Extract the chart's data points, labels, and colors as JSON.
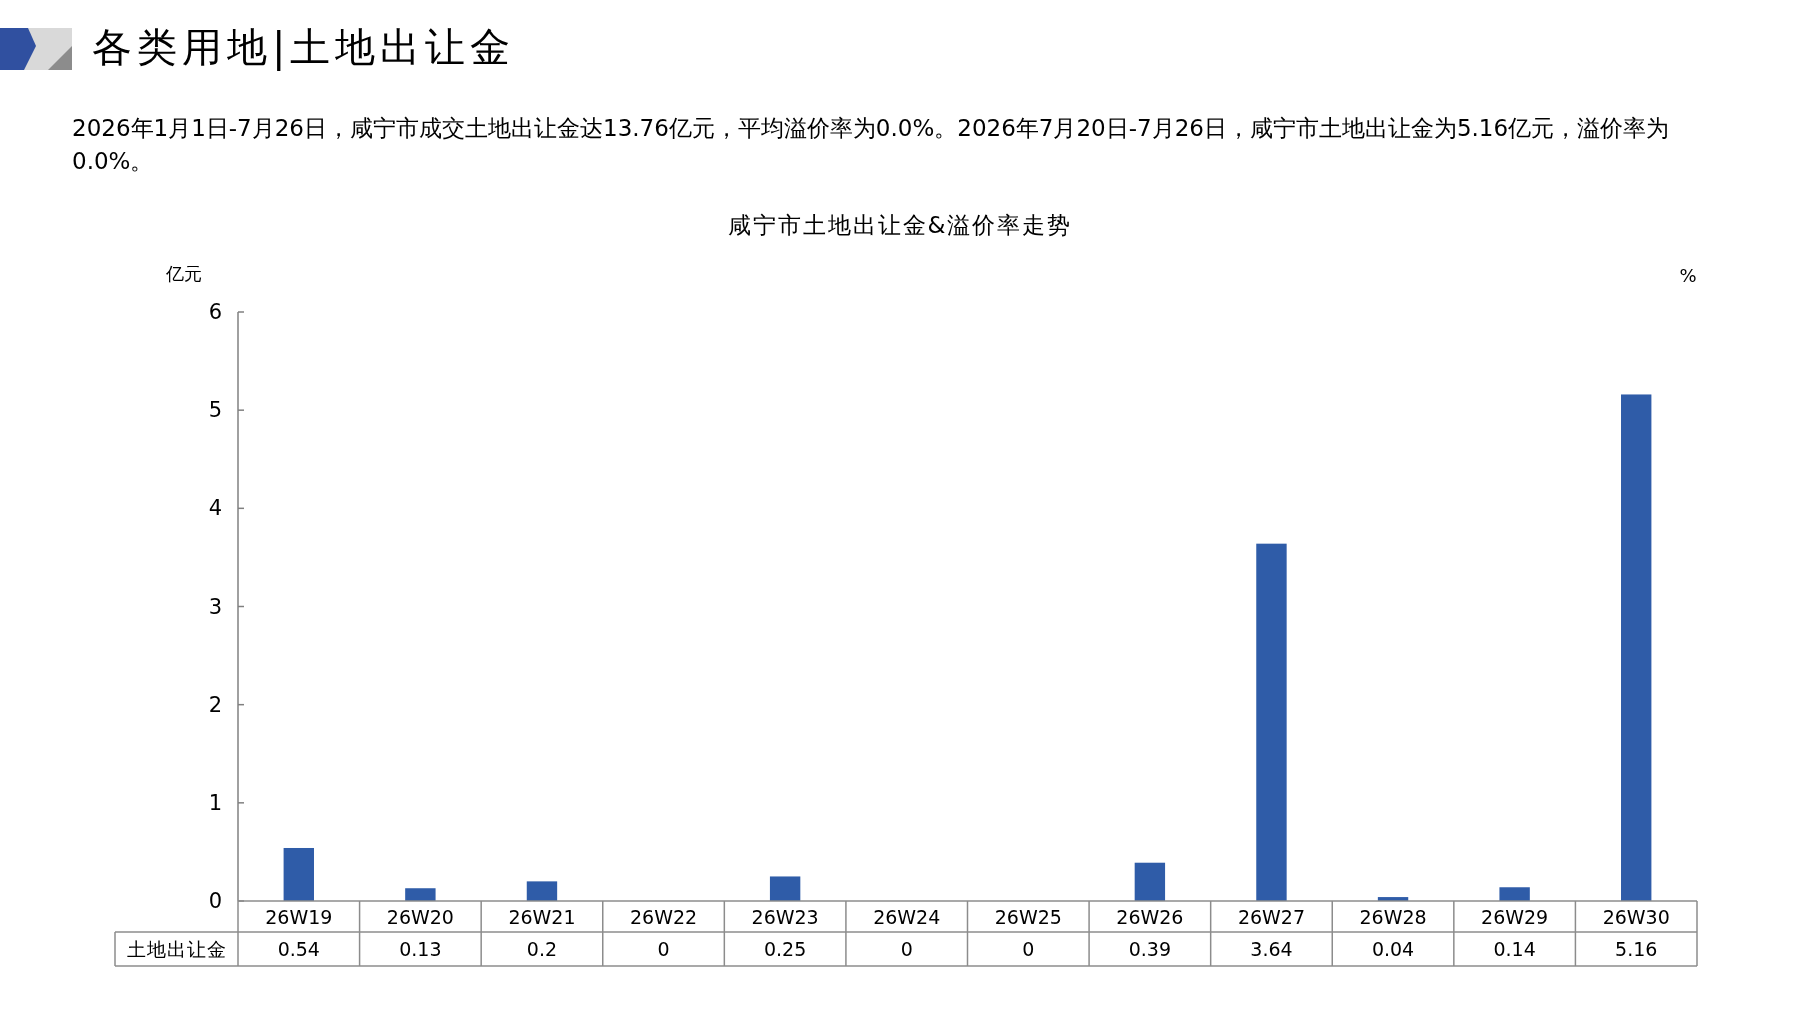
{
  "chart_data": {
    "type": "bar",
    "title": "各类用地|土地出让金",
    "subtitle": "2026年1月1日-7月26日，咸宁市成交土地出让金达13.76亿元，平均溢价率为0.0%。2026年7月20日-7月26日，咸宁市土地出让金为5.16亿元，溢价率为0.0%。",
    "annotations": [
      "咸宁市土地出让金&溢价率走势"
    ],
    "ylabel": "亿元",
    "y2label": "%",
    "categories": [
      "26W19",
      "26W20",
      "26W21",
      "26W22",
      "26W23",
      "26W24",
      "26W25",
      "26W26",
      "26W27",
      "26W28",
      "26W29",
      "26W30"
    ],
    "series": [
      {
        "name": "土地出让金",
        "color": "#2f5ca8",
        "values": [
          0.54,
          0.13,
          0.2,
          0,
          0.25,
          0,
          0,
          0.39,
          3.64,
          0.04,
          0.14,
          5.16
        ]
      }
    ],
    "ylim": [
      0,
      6
    ],
    "yticks": [
      0,
      1,
      2,
      3,
      4,
      5,
      6
    ],
    "data_labels": true
  }
}
